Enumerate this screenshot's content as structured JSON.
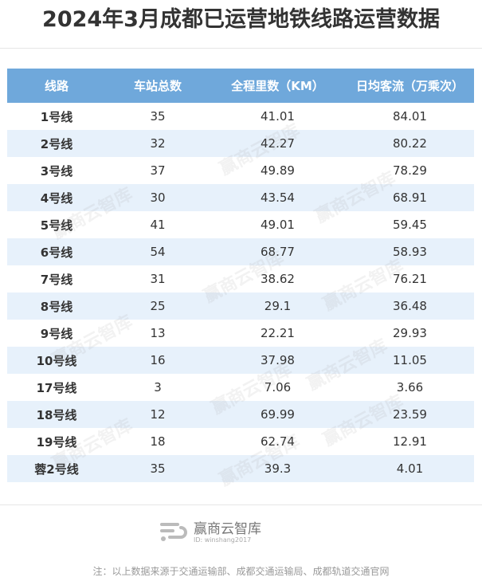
{
  "title": "2024年3月成都已运营地铁线路运营数据",
  "columns": [
    "线路",
    "车站总数",
    "全程里数（KM）",
    "日均客流（万乘次）"
  ],
  "rows": [
    [
      "1号线",
      "35",
      "41.01",
      "84.01"
    ],
    [
      "2号线",
      "32",
      "42.27",
      "80.22"
    ],
    [
      "3号线",
      "37",
      "49.89",
      "78.29"
    ],
    [
      "4号线",
      "30",
      "43.54",
      "68.91"
    ],
    [
      "5号线",
      "41",
      "49.01",
      "59.45"
    ],
    [
      "6号线",
      "54",
      "68.77",
      "58.93"
    ],
    [
      "7号线",
      "31",
      "38.62",
      "76.21"
    ],
    [
      "8号线",
      "25",
      "29.1",
      "36.48"
    ],
    [
      "9号线",
      "13",
      "22.21",
      "29.93"
    ],
    [
      "10号线",
      "16",
      "37.98",
      "11.05"
    ],
    [
      "17号线",
      "3",
      "7.06",
      "3.66"
    ],
    [
      "18号线",
      "12",
      "69.99",
      "23.59"
    ],
    [
      "19号线",
      "18",
      "62.74",
      "12.91"
    ],
    [
      "蓉2号线",
      "35",
      "39.3",
      "4.01"
    ]
  ],
  "watermark_text": "赢商云智库",
  "brand": {
    "name": "赢商云智库",
    "id": "ID: winshang2017"
  },
  "footnote": "注：以上数据来源于交通运输部、成都交通运输局、成都轨道交通官网",
  "colors": {
    "header": "#6fa8db",
    "alt_row": "#e7f1fb"
  }
}
